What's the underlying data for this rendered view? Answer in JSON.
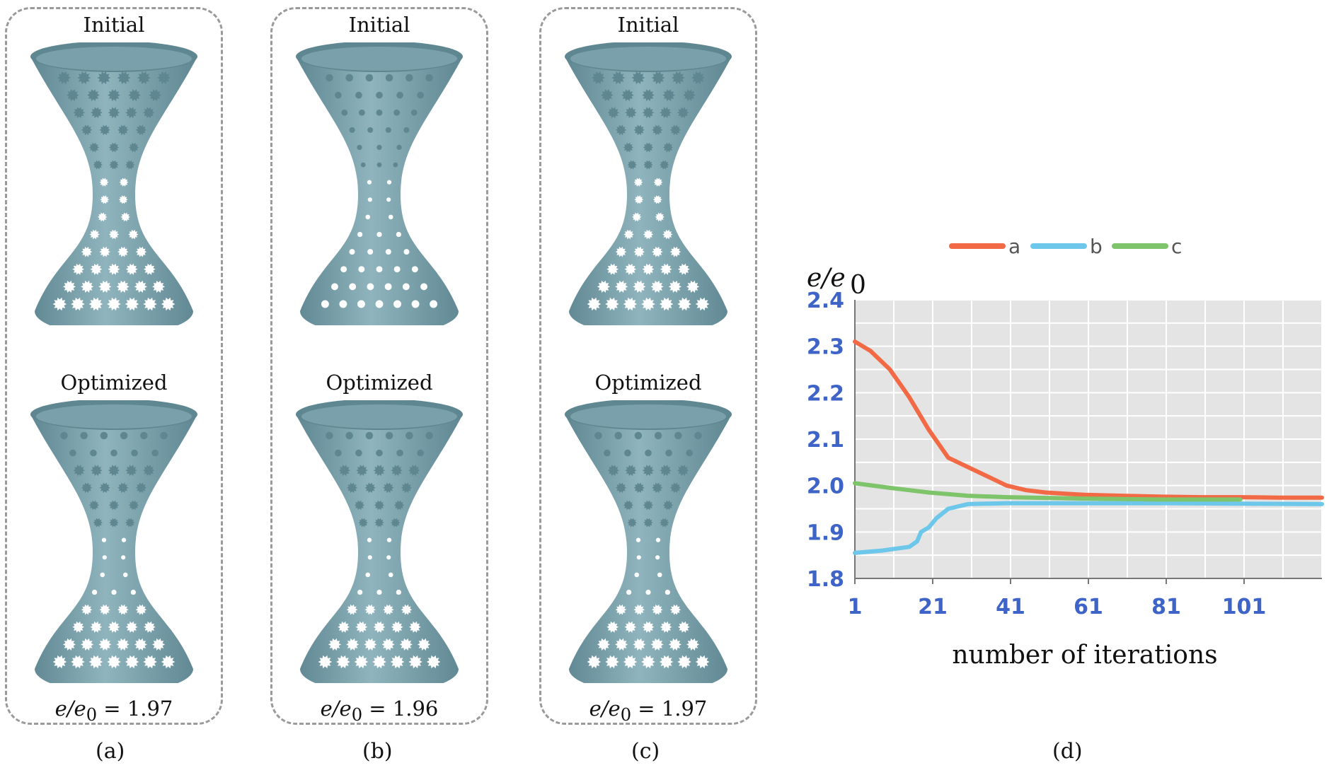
{
  "panels": [
    {
      "id": "a",
      "top_label": "Initial",
      "bottom_label": "Optimized",
      "ratio_symbol": "e/e",
      "ratio_sub": "0",
      "ratio_value": " = 1.97",
      "caption": "(a)",
      "holes_initial": "gear",
      "holes_optimized": "mixed"
    },
    {
      "id": "b",
      "top_label": "Initial",
      "bottom_label": "Optimized",
      "ratio_symbol": "e/e",
      "ratio_sub": "0",
      "ratio_value": " = 1.96",
      "caption": "(b)",
      "holes_initial": "round",
      "holes_optimized": "mixed"
    },
    {
      "id": "c",
      "top_label": "Initial",
      "bottom_label": "Optimized",
      "ratio_symbol": "e/e",
      "ratio_sub": "0",
      "ratio_value": " = 1.97",
      "caption": "(c)",
      "holes_initial": "gear",
      "holes_optimized": "mixed"
    }
  ],
  "colors": {
    "surface": "#8fb4bd",
    "surface_dark": "#5f8792",
    "hole": "#ffffff",
    "panel_border": "#9a9a9a"
  },
  "chart_data": {
    "type": "line",
    "ylabel": "e/e",
    "ylabel_sub": "0",
    "xlabel": "number of iterations",
    "caption": "(d)",
    "xlim": [
      1,
      121
    ],
    "ylim": [
      1.8,
      2.4
    ],
    "x_ticks": [
      1,
      21,
      41,
      61,
      81,
      101
    ],
    "y_ticks": [
      "1.8",
      "1.9",
      "2.0",
      "2.1",
      "2.2",
      "2.3",
      "2.4"
    ],
    "grid": true,
    "legend_position": "top",
    "series": [
      {
        "name": "a",
        "color": "#f26a45",
        "points": [
          [
            1,
            2.31
          ],
          [
            5,
            2.29
          ],
          [
            10,
            2.25
          ],
          [
            15,
            2.19
          ],
          [
            20,
            2.12
          ],
          [
            25,
            2.06
          ],
          [
            30,
            2.04
          ],
          [
            35,
            2.02
          ],
          [
            40,
            2.0
          ],
          [
            45,
            1.99
          ],
          [
            50,
            1.985
          ],
          [
            60,
            1.98
          ],
          [
            70,
            1.978
          ],
          [
            80,
            1.976
          ],
          [
            90,
            1.975
          ],
          [
            100,
            1.975
          ],
          [
            110,
            1.974
          ],
          [
            121,
            1.974
          ]
        ]
      },
      {
        "name": "b",
        "color": "#6cc7ea",
        "points": [
          [
            1,
            1.855
          ],
          [
            8,
            1.86
          ],
          [
            15,
            1.868
          ],
          [
            17,
            1.88
          ],
          [
            18,
            1.9
          ],
          [
            20,
            1.91
          ],
          [
            22,
            1.93
          ],
          [
            25,
            1.95
          ],
          [
            30,
            1.96
          ],
          [
            40,
            1.962
          ],
          [
            60,
            1.962
          ],
          [
            80,
            1.962
          ],
          [
            100,
            1.961
          ],
          [
            121,
            1.96
          ]
        ]
      },
      {
        "name": "c",
        "color": "#7ec46a",
        "points": [
          [
            1,
            2.005
          ],
          [
            10,
            1.995
          ],
          [
            20,
            1.985
          ],
          [
            30,
            1.978
          ],
          [
            40,
            1.975
          ],
          [
            60,
            1.972
          ],
          [
            80,
            1.97
          ],
          [
            100,
            1.97
          ]
        ]
      }
    ]
  }
}
